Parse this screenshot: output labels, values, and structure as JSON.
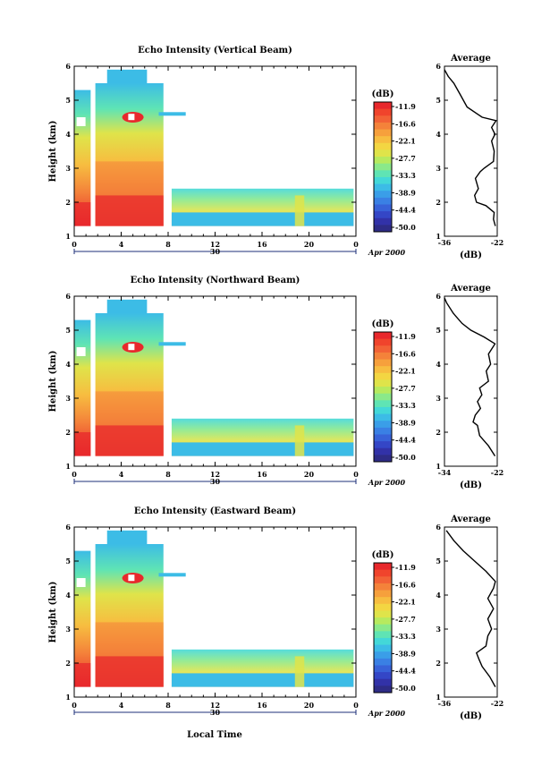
{
  "footer": {
    "xlabel": "Local Time"
  },
  "colorbar": {
    "unit": "(dB)",
    "labels": [
      "-11.9",
      "-16.6",
      "-22.1",
      "-27.7",
      "-33.3",
      "-38.9",
      "-44.4",
      "-50.0"
    ],
    "colors": [
      "#e8282c",
      "#f0442c",
      "#f26236",
      "#f4823a",
      "#f6a03c",
      "#f7bd40",
      "#f3d642",
      "#dfe44a",
      "#b7ea5e",
      "#8ae98a",
      "#5fe4b4",
      "#43d8d8",
      "#3cbce6",
      "#3a9ee8",
      "#3a80e4",
      "#3862d8",
      "#3446c6",
      "#3232a8",
      "#2e2c86"
    ]
  },
  "chart_data": [
    {
      "type": "heatmap",
      "title": "Echo Intensity (Vertical Beam)",
      "ylabel": "Height (km)",
      "ylim": [
        1,
        6
      ],
      "yticks": [
        "1",
        "2",
        "3",
        "4",
        "5",
        "6"
      ],
      "xlim": [
        0,
        24
      ],
      "xticks": [
        "0",
        "4",
        "8",
        "12",
        "16",
        "20",
        "0"
      ],
      "date_label": "30",
      "month_label": "Apr 2000",
      "profile": {
        "title": "Average",
        "xlabel": "(dB)",
        "xlim": [
          -36,
          -22
        ],
        "xticks": [
          "-36",
          "-22"
        ],
        "ylim": [
          1,
          6
        ],
        "yticks": [
          "1",
          "2",
          "3",
          "4",
          "5",
          "6"
        ],
        "points": [
          [
            -22.5,
            1.3
          ],
          [
            -23,
            1.5
          ],
          [
            -22.8,
            1.7
          ],
          [
            -25,
            1.9
          ],
          [
            -27.5,
            2.0
          ],
          [
            -28,
            2.2
          ],
          [
            -27,
            2.4
          ],
          [
            -27.8,
            2.7
          ],
          [
            -26.5,
            2.9
          ],
          [
            -25.5,
            3.0
          ],
          [
            -23,
            3.2
          ],
          [
            -22.8,
            3.5
          ],
          [
            -23.5,
            3.8
          ],
          [
            -22.6,
            4.0
          ],
          [
            -23.5,
            4.2
          ],
          [
            -22.3,
            4.4
          ],
          [
            -26,
            4.5
          ],
          [
            -30,
            4.8
          ],
          [
            -32,
            5.2
          ],
          [
            -33.5,
            5.5
          ],
          [
            -35,
            5.7
          ],
          [
            -36,
            5.9
          ]
        ]
      }
    },
    {
      "type": "heatmap",
      "title": "Echo Intensity (Northward Beam)",
      "ylabel": "Height (km)",
      "ylim": [
        1,
        6
      ],
      "yticks": [
        "1",
        "2",
        "3",
        "4",
        "5",
        "6"
      ],
      "xlim": [
        0,
        24
      ],
      "xticks": [
        "0",
        "4",
        "8",
        "12",
        "16",
        "20",
        "0"
      ],
      "date_label": "30",
      "month_label": "Apr 2000",
      "profile": {
        "title": "Average",
        "xlabel": "(dB)",
        "xlim": [
          -34,
          -22
        ],
        "xticks": [
          "-34",
          "-22"
        ],
        "ylim": [
          1,
          6
        ],
        "yticks": [
          "1",
          "2",
          "3",
          "4",
          "5",
          "6"
        ],
        "points": [
          [
            -22.5,
            1.3
          ],
          [
            -24,
            1.6
          ],
          [
            -26,
            1.9
          ],
          [
            -26.5,
            2.2
          ],
          [
            -27.5,
            2.3
          ],
          [
            -27,
            2.5
          ],
          [
            -25.8,
            2.7
          ],
          [
            -26.5,
            2.9
          ],
          [
            -25.5,
            3.1
          ],
          [
            -26,
            3.3
          ],
          [
            -24,
            3.5
          ],
          [
            -24.5,
            3.8
          ],
          [
            -23.5,
            4.0
          ],
          [
            -24,
            4.3
          ],
          [
            -22.5,
            4.6
          ],
          [
            -25,
            4.8
          ],
          [
            -28,
            5.0
          ],
          [
            -30,
            5.2
          ],
          [
            -32,
            5.5
          ],
          [
            -33.5,
            5.8
          ],
          [
            -34,
            5.95
          ]
        ]
      }
    },
    {
      "type": "heatmap",
      "title": "Echo Intensity (Eastward Beam)",
      "ylabel": "Height (km)",
      "ylim": [
        1,
        6
      ],
      "yticks": [
        "1",
        "2",
        "3",
        "4",
        "5",
        "6"
      ],
      "xlim": [
        0,
        24
      ],
      "xticks": [
        "0",
        "4",
        "8",
        "12",
        "16",
        "20",
        "0"
      ],
      "date_label": "30",
      "month_label": "Apr 2000",
      "profile": {
        "title": "Average",
        "xlabel": "(dB)",
        "xlim": [
          -36,
          -22
        ],
        "xticks": [
          "-36",
          "-22"
        ],
        "ylim": [
          1,
          6
        ],
        "yticks": [
          "1",
          "2",
          "3",
          "4",
          "5",
          "6"
        ],
        "points": [
          [
            -22.5,
            1.3
          ],
          [
            -24,
            1.6
          ],
          [
            -26,
            1.9
          ],
          [
            -26.8,
            2.1
          ],
          [
            -27.5,
            2.3
          ],
          [
            -25,
            2.5
          ],
          [
            -24.5,
            2.8
          ],
          [
            -23.5,
            3.0
          ],
          [
            -24.5,
            3.3
          ],
          [
            -23,
            3.6
          ],
          [
            -24.5,
            3.9
          ],
          [
            -23,
            4.2
          ],
          [
            -22.5,
            4.4
          ],
          [
            -25,
            4.7
          ],
          [
            -28,
            5.0
          ],
          [
            -31,
            5.3
          ],
          [
            -33.5,
            5.6
          ],
          [
            -35.5,
            5.9
          ]
        ]
      }
    }
  ]
}
